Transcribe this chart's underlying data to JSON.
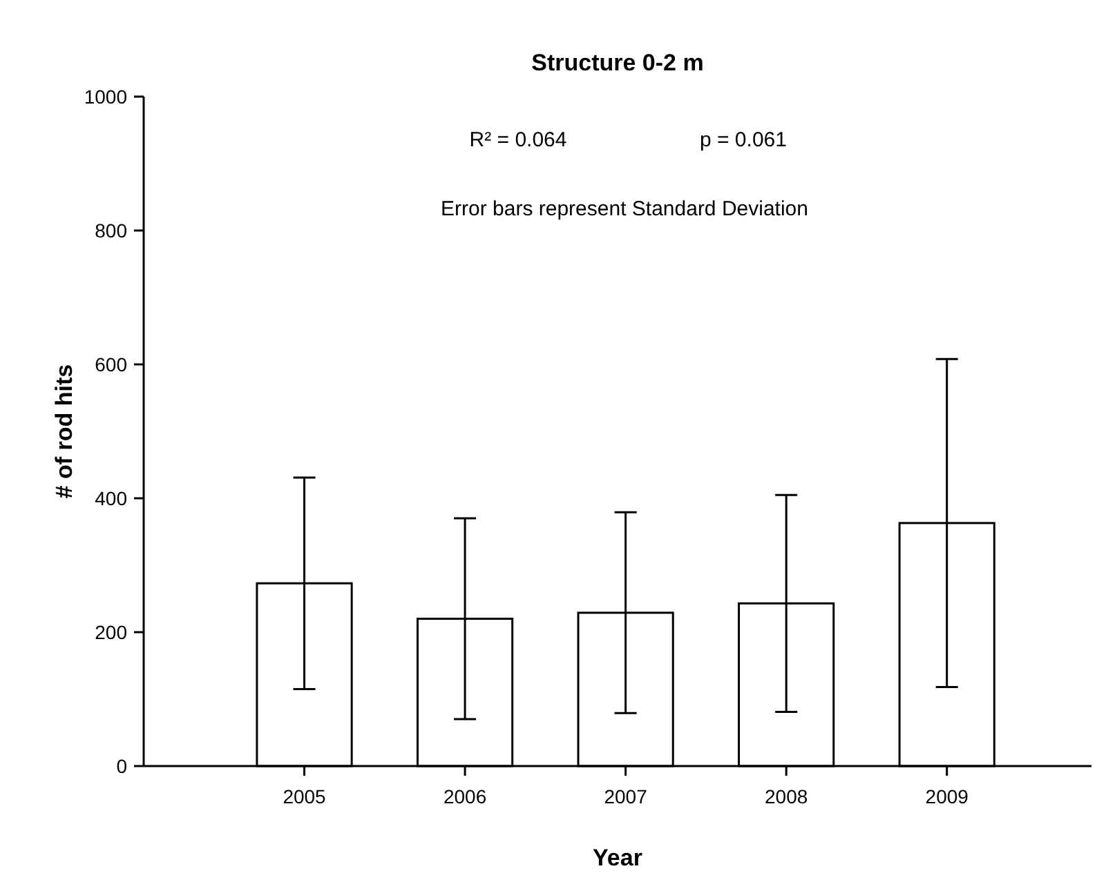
{
  "chart_data": {
    "type": "bar",
    "title": "Structure 0-2 m",
    "xlabel": "Year",
    "ylabel": "# of rod hits",
    "annotations": [
      "R² = 0.064",
      "p = 0.061",
      "Error bars represent Standard Deviation"
    ],
    "x": [
      2005,
      2006,
      2007,
      2008,
      2009
    ],
    "values": [
      273,
      220,
      229,
      243,
      363
    ],
    "errors": [
      158,
      150,
      150,
      162,
      245
    ],
    "color": "#ffffff",
    "xlim": [
      2004,
      2009.9
    ],
    "xticks": [
      2005,
      2006,
      2007,
      2008,
      2009
    ],
    "ylim": [
      0,
      1000
    ],
    "yticks": [
      0,
      200,
      400,
      600,
      800,
      1000
    ],
    "grid": false
  }
}
